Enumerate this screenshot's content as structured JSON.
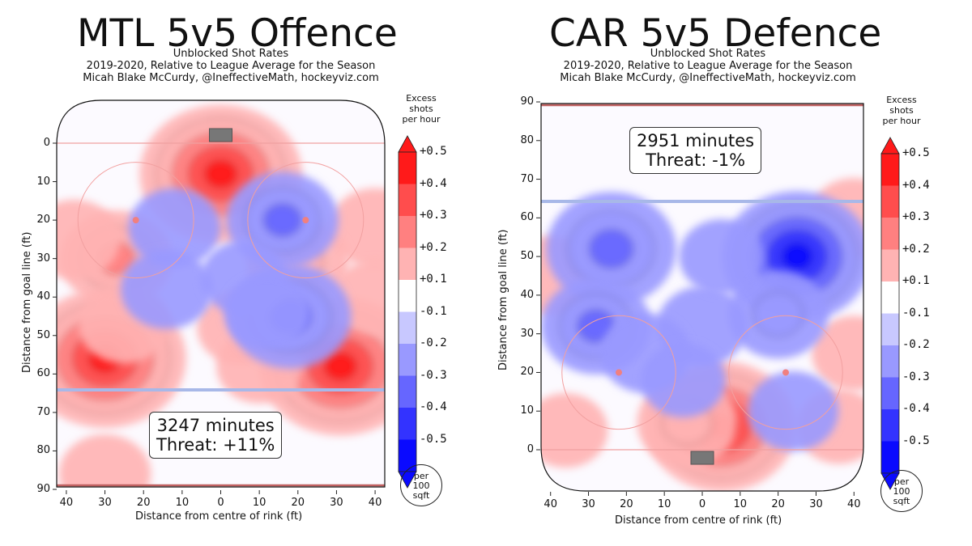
{
  "chart_data": [
    {
      "type": "heatmap",
      "title": "MTL 5v5 Offence",
      "subtitle_lines": [
        "Unblocked Shot Rates",
        "2019-2020, Relative to League Average for the Season",
        "Micah Blake McCurdy, @IneffectiveMath, hockeyviz.com"
      ],
      "xlabel": "Distance from centre of rink (ft)",
      "ylabel": "Distance from goal line (ft)",
      "x_ticks": [
        "40",
        "30",
        "20",
        "10",
        "0",
        "10",
        "20",
        "30",
        "40"
      ],
      "y_ticks": [
        "0",
        "10",
        "20",
        "30",
        "40",
        "50",
        "60",
        "70",
        "80",
        "90"
      ],
      "xlim": [
        -42.5,
        42.5
      ],
      "ylim": [
        -11,
        89
      ],
      "y_direction": "down",
      "annotation": [
        "3247 minutes",
        "Threat: +11%"
      ],
      "hotspots": [
        {
          "x": 0,
          "y": 8,
          "value": 0.5
        },
        {
          "x": -30,
          "y": 56,
          "value": 0.5
        },
        {
          "x": 31,
          "y": 58,
          "value": 0.5
        },
        {
          "x": -27,
          "y": 30,
          "value": 0.25
        },
        {
          "x": -38,
          "y": 25,
          "value": 0.15
        },
        {
          "x": -25,
          "y": 47,
          "value": 0.15
        },
        {
          "x": 5,
          "y": 48,
          "value": 0.12
        },
        {
          "x": 40,
          "y": 22,
          "value": 0.15
        },
        {
          "x": 20,
          "y": 31,
          "value": 0.2
        },
        {
          "x": 40,
          "y": 40,
          "value": 0.12
        },
        {
          "x": -30,
          "y": 86,
          "value": 0.15
        },
        {
          "x": 10,
          "y": 58,
          "value": 0.12
        },
        {
          "x": 16,
          "y": 20,
          "value": -0.25
        },
        {
          "x": 18,
          "y": 45,
          "value": -0.3
        },
        {
          "x": -12,
          "y": 22,
          "value": -0.15
        },
        {
          "x": -14,
          "y": 38,
          "value": -0.15
        },
        {
          "x": 6,
          "y": 35,
          "value": -0.12
        },
        {
          "x": 12,
          "y": 44,
          "value": -0.12
        }
      ]
    },
    {
      "type": "heatmap",
      "title": "CAR 5v5 Defence",
      "subtitle_lines": [
        "Unblocked Shot Rates",
        "2019-2020, Relative to League Average for the Season",
        "Micah Blake McCurdy, @IneffectiveMath, hockeyviz.com"
      ],
      "xlabel": "Distance from centre of rink (ft)",
      "ylabel": "Distance from goal line (ft)",
      "x_ticks": [
        "40",
        "30",
        "20",
        "10",
        "0",
        "10",
        "20",
        "30",
        "40"
      ],
      "y_ticks": [
        "0",
        "10",
        "20",
        "30",
        "40",
        "50",
        "60",
        "70",
        "80",
        "90"
      ],
      "xlim": [
        -42.5,
        42.5
      ],
      "ylim": [
        -11,
        89
      ],
      "y_direction": "up",
      "annotation": [
        "2951 minutes",
        "Threat: -1%"
      ],
      "hotspots": [
        {
          "x": 5,
          "y": 6,
          "value": 0.45
        },
        {
          "x": -4,
          "y": 7,
          "value": 0.2
        },
        {
          "x": -40,
          "y": 45,
          "value": 0.15
        },
        {
          "x": 40,
          "y": 60,
          "value": 0.15
        },
        {
          "x": 40,
          "y": 25,
          "value": 0.12
        },
        {
          "x": 36,
          "y": 6,
          "value": 0.12
        },
        {
          "x": -36,
          "y": 5,
          "value": 0.12
        },
        {
          "x": 25,
          "y": 50,
          "value": -0.45
        },
        {
          "x": -24,
          "y": 52,
          "value": -0.35
        },
        {
          "x": -28,
          "y": 32,
          "value": -0.25
        },
        {
          "x": 20,
          "y": 35,
          "value": -0.2
        },
        {
          "x": 0,
          "y": 32,
          "value": -0.15
        },
        {
          "x": -15,
          "y": 25,
          "value": -0.15
        },
        {
          "x": 24,
          "y": 10,
          "value": -0.15
        },
        {
          "x": 5,
          "y": 50,
          "value": -0.12
        },
        {
          "x": -5,
          "y": 18,
          "value": -0.12
        }
      ]
    }
  ],
  "colorbar": {
    "title": [
      "Excess",
      "shots",
      "per hour"
    ],
    "levels": [
      "+0.5",
      "+0.4",
      "+0.3",
      "+0.2",
      "+0.1",
      "-0.1",
      "-0.2",
      "-0.3",
      "-0.4",
      "-0.5"
    ],
    "colors": [
      "#ff1a1a",
      "#ff4d4d",
      "#ff8080",
      "#ffb3b3",
      "#ffffff",
      "#c8c8ff",
      "#9999ff",
      "#6666ff",
      "#3333ff",
      "#0a0aff"
    ]
  },
  "unit_circle": [
    "per",
    "100",
    "sqft"
  ]
}
